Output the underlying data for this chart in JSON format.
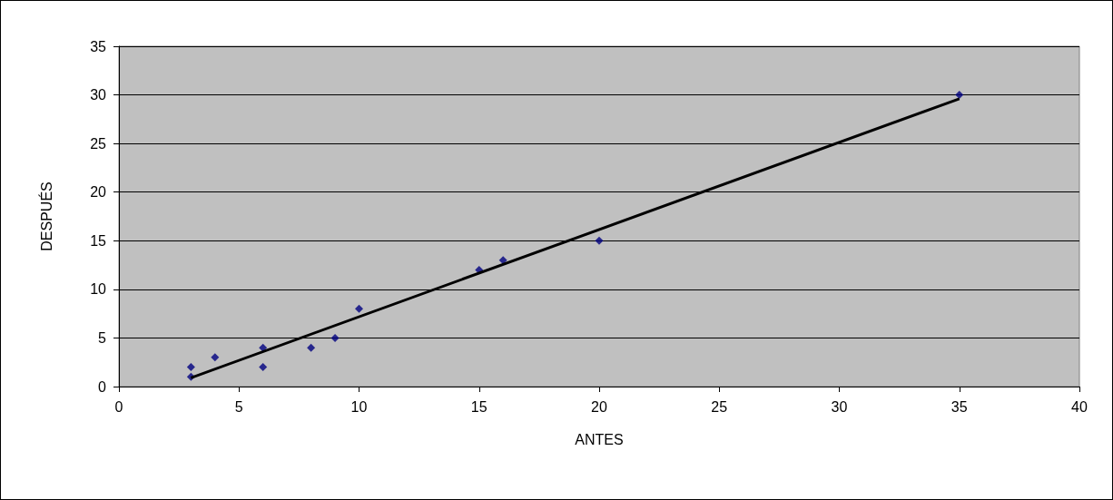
{
  "chart_data": {
    "type": "scatter",
    "xlabel": "ANTES",
    "ylabel": "DESPUÉS",
    "xlim": [
      0,
      40
    ],
    "xticks": [
      0,
      5,
      10,
      15,
      20,
      25,
      30,
      35,
      40
    ],
    "ylim": [
      0,
      35
    ],
    "yticks": [
      0,
      5,
      10,
      15,
      20,
      25,
      30,
      35
    ],
    "grid": "y",
    "series": [
      {
        "marker": "diamond",
        "color": "#000080",
        "x": [
          3,
          3,
          4,
          6,
          6,
          8,
          9,
          10,
          15,
          16,
          20,
          35
        ],
        "values": [
          1,
          2,
          3,
          4,
          2,
          4,
          5,
          8,
          12,
          13,
          15,
          30
        ]
      },
      {
        "type": "line",
        "marker": "none",
        "color": "#000000",
        "x": [
          3,
          35
        ],
        "values": [
          0.9,
          29.6
        ]
      }
    ]
  }
}
